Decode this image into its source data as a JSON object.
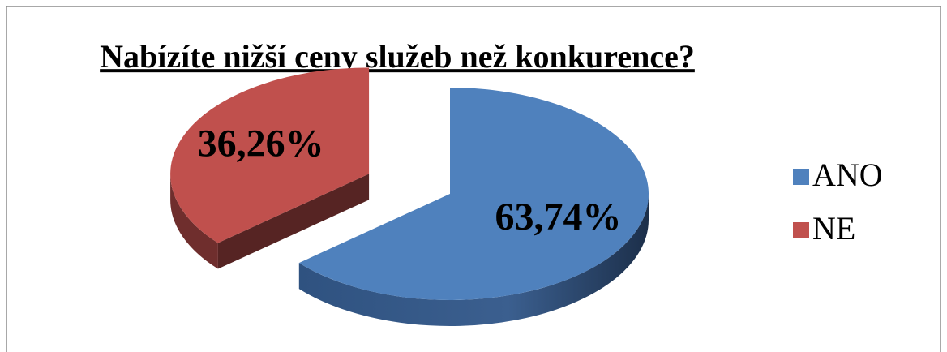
{
  "chart_data": {
    "type": "pie",
    "title": "Nabízíte nižší ceny služeb než konkurence?",
    "categories": [
      "ANO",
      "NE"
    ],
    "values": [
      63.74,
      36.26
    ],
    "value_labels": [
      "63,74%",
      "36,26%"
    ],
    "colors": [
      "#4f81bd",
      "#c0504d"
    ],
    "legend": "right"
  }
}
